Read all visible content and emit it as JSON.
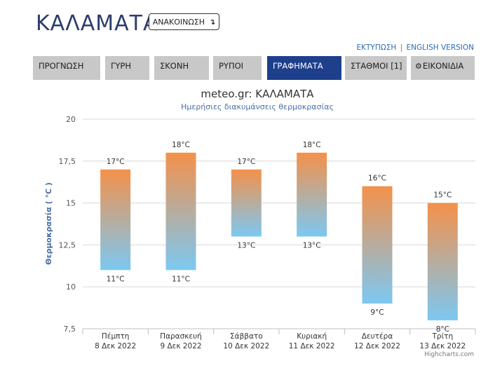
{
  "header": {
    "title": "ΚΑΛΑΜΑΤΑ",
    "announce_label": "ΑΝΑΚΟΙΝΩΣΗ",
    "announce_icon": "arrow-down-return-icon",
    "print_link": "ΕΚΤΥΠΩΣΗ",
    "separator": "|",
    "english_link": "ENGLISH VERSION"
  },
  "tabs": [
    {
      "label": "ΠΡΟΓΝΩΣΗ",
      "active": false
    },
    {
      "label": "ΓΥΡΗ",
      "active": false
    },
    {
      "label": "ΣΚΟΝΗ",
      "active": false
    },
    {
      "label": "ΡΥΠΟΙ",
      "active": false
    },
    {
      "label": "ΓΡΑΦΗΜΑΤΑ",
      "active": true
    },
    {
      "label": "ΣΤΑΘΜΟΙ [1]",
      "active": false
    },
    {
      "label": "ΕΙΚΟΝΙΔΙΑ",
      "active": false,
      "icon": "gear-icon"
    }
  ],
  "colors": {
    "accent": "#1e3f8c",
    "title_text": "#2b3d6b",
    "tab_bg": "#c8c8c8",
    "bar_top": "#f4914a",
    "bar_bottom": "#7cc8f2",
    "axis_title": "#4a6fa5"
  },
  "chart_data": {
    "type": "columnrange",
    "title": "meteo.gr: ΚΑΛΑΜΑΤΑ",
    "subtitle": "Ημερήσιες διακυμάνσεις θερμοκρασίας",
    "ylabel": "Θερμοκρασία ( °C )",
    "ylim": [
      7.5,
      20
    ],
    "yticks": [
      {
        "value": 7.5,
        "label": "7,5"
      },
      {
        "value": 10,
        "label": "10"
      },
      {
        "value": 12.5,
        "label": "12,5"
      },
      {
        "value": 15,
        "label": "15"
      },
      {
        "value": 17.5,
        "label": "17,5"
      },
      {
        "value": 20,
        "label": "20"
      }
    ],
    "categories": [
      {
        "day": "Πέμπτη",
        "date": "8 Δεκ 2022"
      },
      {
        "day": "Παρασκευή",
        "date": "9 Δεκ 2022"
      },
      {
        "day": "Σάββατο",
        "date": "10 Δεκ 2022"
      },
      {
        "day": "Κυριακή",
        "date": "11 Δεκ 2022"
      },
      {
        "day": "Δευτέρα",
        "date": "12 Δεκ 2022"
      },
      {
        "day": "Τρίτη",
        "date": "13 Δεκ 2022"
      }
    ],
    "low": [
      11,
      11,
      13,
      13,
      9,
      8
    ],
    "high": [
      17,
      18,
      17,
      18,
      16,
      15
    ],
    "unit": "°C",
    "grid": true,
    "credits": "Highcharts.com"
  }
}
